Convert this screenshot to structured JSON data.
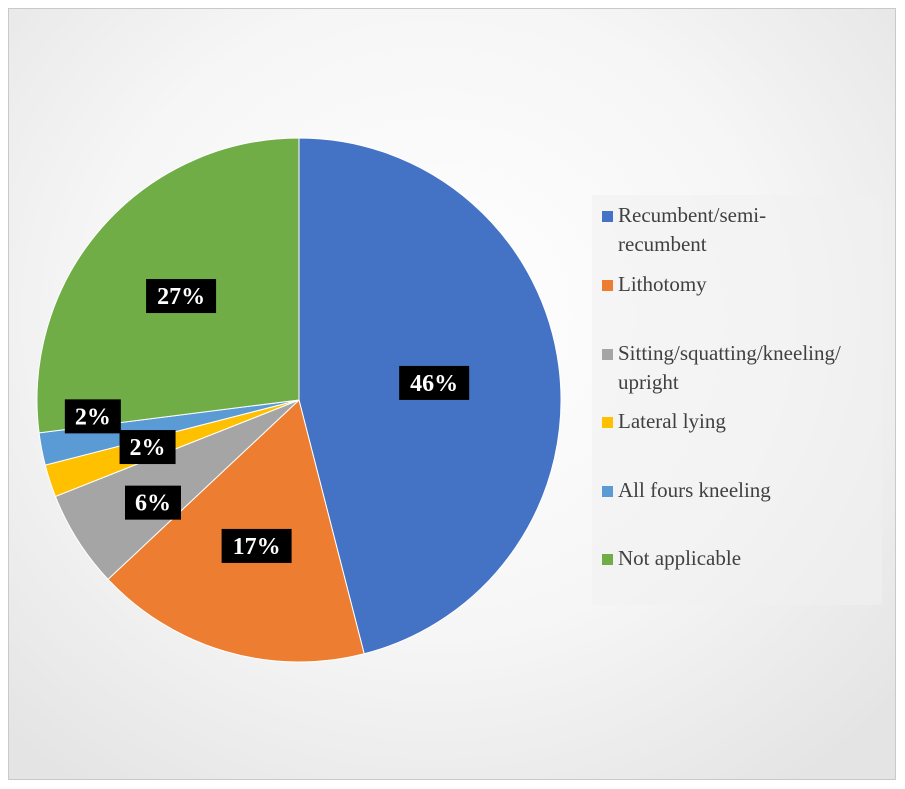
{
  "chart_data": {
    "type": "pie",
    "title": "",
    "slices": [
      {
        "label": "Recumbent/semi-recumbent",
        "value": 46,
        "display": "46%",
        "color": "#4472C4"
      },
      {
        "label": "Lithotomy",
        "value": 17,
        "display": "17%",
        "color": "#ED7D31"
      },
      {
        "label": "Sitting/squatting/kneeling/upright",
        "value": 6,
        "display": "6%",
        "color": "#A5A5A5"
      },
      {
        "label": "Lateral lying",
        "value": 2,
        "display": "2%",
        "color": "#FFC000"
      },
      {
        "label": "All fours kneeling",
        "value": 2,
        "display": "2%",
        "color": "#5B9BD5"
      },
      {
        "label": "Not applicable",
        "value": 27,
        "display": "27%",
        "color": "#70AD47"
      }
    ],
    "legend_position": "right"
  },
  "legend": {
    "items": [
      {
        "line1": "Recumbent/semi-",
        "line2": "recumbent"
      },
      {
        "line1": "Lithotomy",
        "line2": ""
      },
      {
        "line1": "Sitting/squatting/kneeling/",
        "line2": "upright"
      },
      {
        "line1": "Lateral lying",
        "line2": ""
      },
      {
        "line1": "All fours kneeling",
        "line2": ""
      },
      {
        "line1": "Not applicable",
        "line2": ""
      }
    ]
  }
}
